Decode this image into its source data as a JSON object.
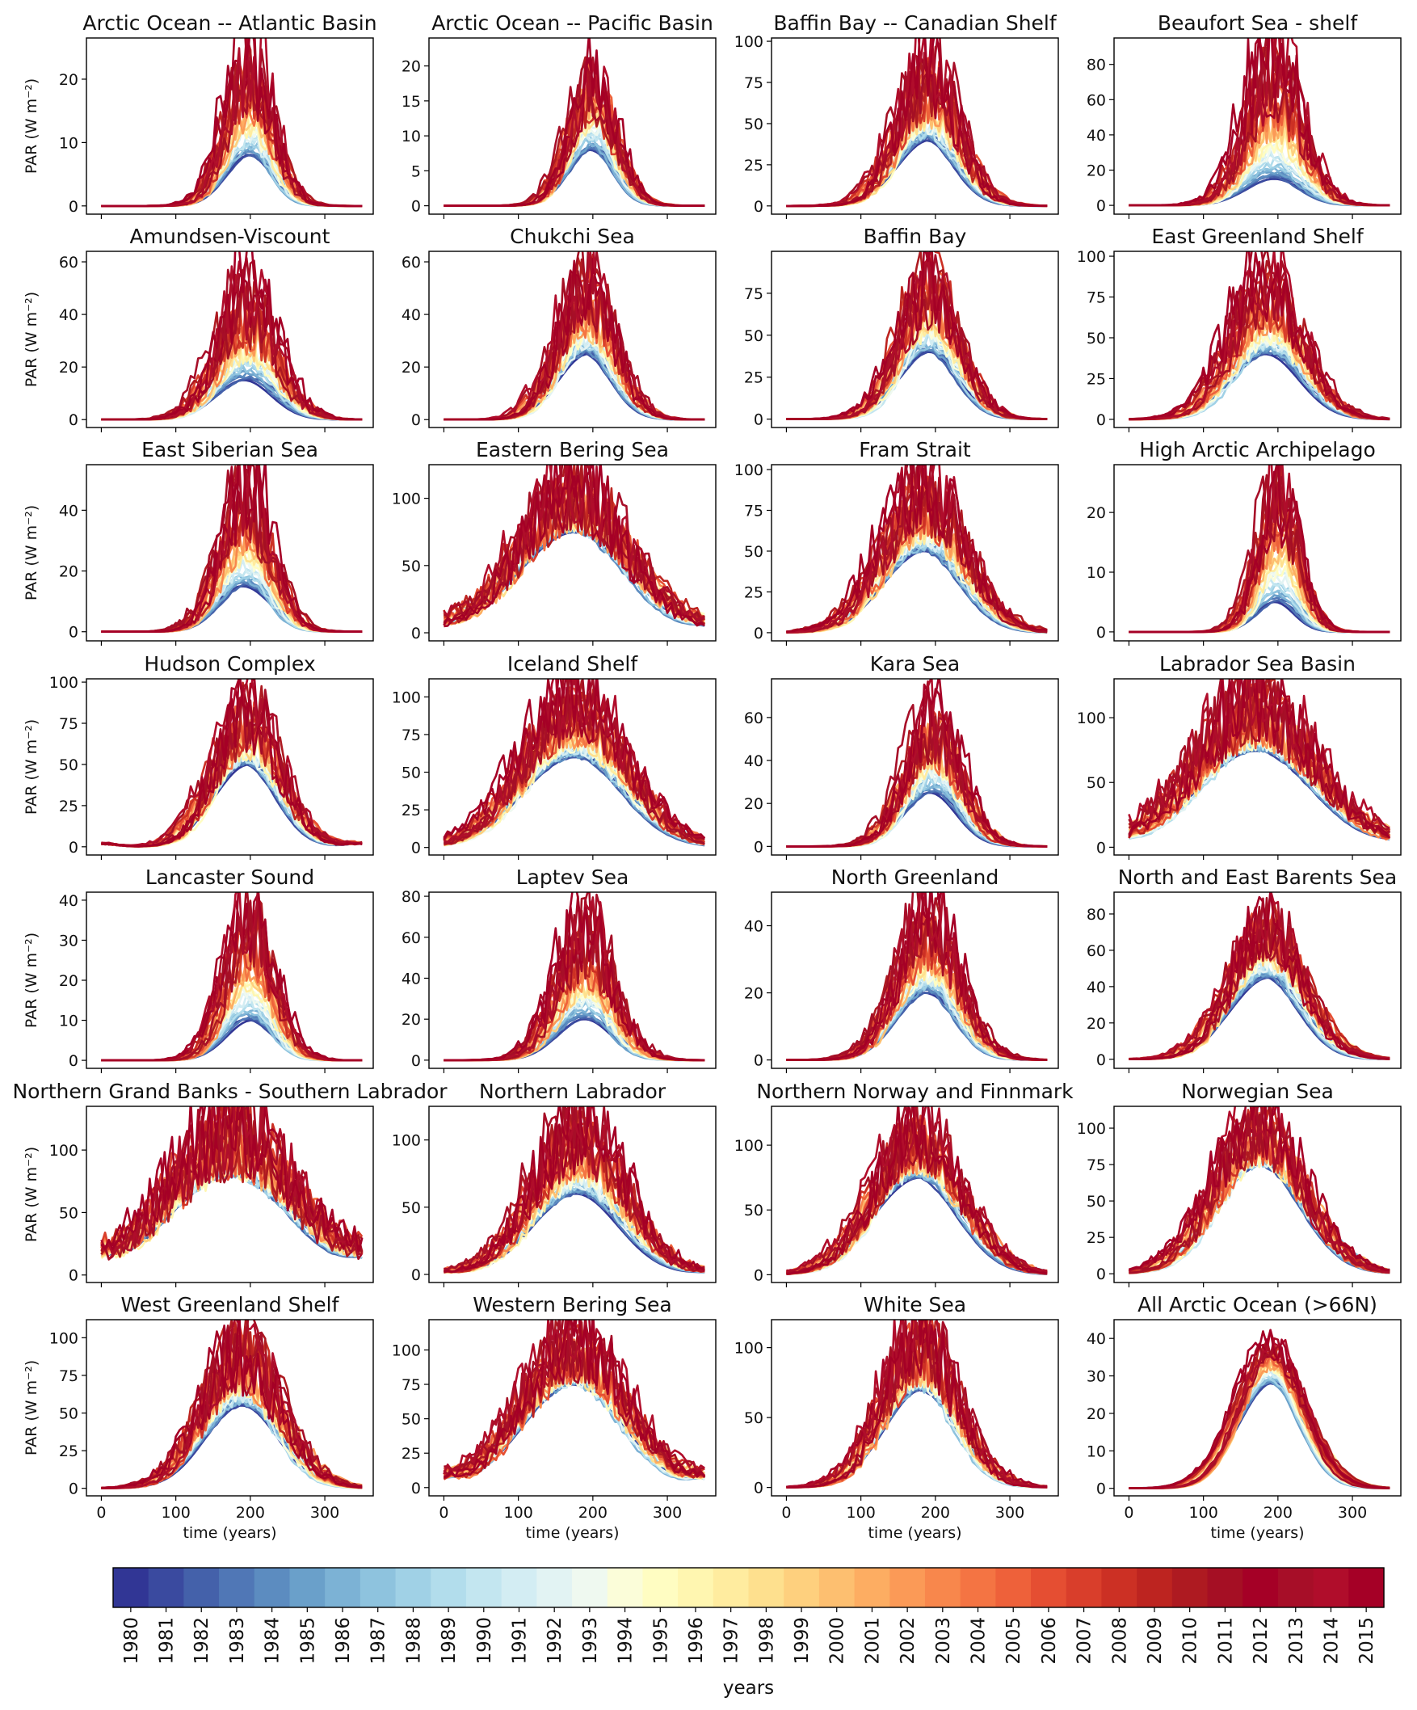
{
  "figure": {
    "ylabel": "PAR (W m⁻²)",
    "xlabel": "time (years)",
    "colorbar": {
      "label": "years",
      "years": [
        "1980",
        "1981",
        "1982",
        "1983",
        "1984",
        "1985",
        "1986",
        "1987",
        "1988",
        "1989",
        "1990",
        "1991",
        "1992",
        "1993",
        "1994",
        "1995",
        "1996",
        "1997",
        "1998",
        "1999",
        "2000",
        "2001",
        "2002",
        "2003",
        "2004",
        "2005",
        "2006",
        "2007",
        "2008",
        "2009",
        "2010",
        "2011",
        "2012",
        "2013",
        "2014",
        "2015"
      ],
      "colors": [
        "#313695",
        "#3a4a9f",
        "#4461aa",
        "#5077b6",
        "#5c8cc0",
        "#6aa0ca",
        "#7cb2d5",
        "#8ec3de",
        "#a0d1e6",
        "#b2ddec",
        "#c3e6f0",
        "#d3edf3",
        "#e2f3f3",
        "#eff9f0",
        "#fbfdd9",
        "#fffdc2",
        "#fff6b0",
        "#ffec9f",
        "#fee08e",
        "#fed07e",
        "#fdbf70",
        "#fdad62",
        "#fb9a57",
        "#f8874c",
        "#f47443",
        "#ee613a",
        "#e54e32",
        "#d93e2b",
        "#cc3024",
        "#bd2420",
        "#ae1a21",
        "#a50f24",
        "#a50026",
        "#a70e28",
        "#b00d2b",
        "#a50026"
      ]
    },
    "xlim": [
      -20,
      365
    ],
    "xticks": [
      0,
      100,
      200,
      300
    ]
  },
  "chart_data": [
    {
      "type": "line",
      "title": "Arctic Ocean -- Atlantic Basin",
      "ylim": [
        -1.3,
        26.5
      ],
      "yticks": [
        0,
        10,
        20
      ],
      "peak": [
        8,
        26
      ],
      "peak_day": 200,
      "sigma": 32,
      "start": 0,
      "noise": 0.4
    },
    {
      "type": "line",
      "title": "Arctic Ocean -- Pacific Basin",
      "ylim": [
        -1.2,
        24
      ],
      "yticks": [
        0,
        5,
        10,
        15,
        20
      ],
      "peak": [
        8,
        22
      ],
      "peak_day": 200,
      "sigma": 32,
      "start": 0,
      "noise": 0.35
    },
    {
      "type": "line",
      "title": "Baffin Bay -- Canadian Shelf",
      "ylim": [
        -5,
        102
      ],
      "yticks": [
        0,
        25,
        50,
        75,
        100
      ],
      "peak": [
        40,
        95
      ],
      "peak_day": 190,
      "sigma": 42,
      "start": 0,
      "noise": 0.4
    },
    {
      "type": "line",
      "title": "Beaufort Sea - shelf",
      "ylim": [
        -5,
        95
      ],
      "yticks": [
        0,
        20,
        40,
        60,
        80
      ],
      "peak": [
        15,
        90
      ],
      "peak_day": 195,
      "sigma": 38,
      "start": 0,
      "noise": 0.45
    },
    {
      "type": "line",
      "title": "Amundsen-Viscount",
      "ylim": [
        -3,
        64
      ],
      "yticks": [
        0,
        20,
        40,
        60
      ],
      "peak": [
        15,
        60
      ],
      "peak_day": 195,
      "sigma": 40,
      "start": 0,
      "noise": 0.45
    },
    {
      "type": "line",
      "title": "Chukchi Sea",
      "ylim": [
        -3,
        64
      ],
      "yticks": [
        0,
        20,
        40,
        60
      ],
      "peak": [
        25,
        60
      ],
      "peak_day": 190,
      "sigma": 38,
      "start": 0,
      "noise": 0.4
    },
    {
      "type": "line",
      "title": "Baffin Bay",
      "ylim": [
        -5,
        100
      ],
      "yticks": [
        0,
        25,
        50,
        75
      ],
      "peak": [
        40,
        95
      ],
      "peak_day": 190,
      "sigma": 40,
      "start": 0,
      "noise": 0.35
    },
    {
      "type": "line",
      "title": "East Greenland Shelf",
      "ylim": [
        -5,
        103
      ],
      "yticks": [
        0,
        25,
        50,
        75,
        100
      ],
      "peak": [
        40,
        98
      ],
      "peak_day": 185,
      "sigma": 48,
      "start": 0,
      "noise": 0.35
    },
    {
      "type": "line",
      "title": "East Siberian Sea",
      "ylim": [
        -3,
        55
      ],
      "yticks": [
        0,
        20,
        40
      ],
      "peak": [
        15,
        52
      ],
      "peak_day": 195,
      "sigma": 35,
      "start": 0,
      "noise": 0.4
    },
    {
      "type": "line",
      "title": "Eastern Bering Sea",
      "ylim": [
        -6,
        125
      ],
      "yticks": [
        0,
        50,
        100
      ],
      "peak": [
        75,
        120
      ],
      "peak_day": 175,
      "sigma": 75,
      "start": 3,
      "noise": 0.35
    },
    {
      "type": "line",
      "title": "Fram Strait",
      "ylim": [
        -5,
        103
      ],
      "yticks": [
        0,
        25,
        50,
        75,
        100
      ],
      "peak": [
        50,
        98
      ],
      "peak_day": 185,
      "sigma": 55,
      "start": 0,
      "noise": 0.35
    },
    {
      "type": "line",
      "title": "High Arctic Archipelago",
      "ylim": [
        -1.5,
        28
      ],
      "yticks": [
        0,
        10,
        20
      ],
      "peak": [
        5,
        27
      ],
      "peak_day": 200,
      "sigma": 28,
      "start": 0,
      "noise": 0.4
    },
    {
      "type": "line",
      "title": "Hudson Complex",
      "ylim": [
        -5,
        102
      ],
      "yticks": [
        0,
        25,
        50,
        75,
        100
      ],
      "peak": [
        50,
        95
      ],
      "peak_day": 195,
      "sigma": 45,
      "start": 2,
      "noise": 0.35
    },
    {
      "type": "line",
      "title": "Iceland Shelf",
      "ylim": [
        -5,
        112
      ],
      "yticks": [
        0,
        25,
        50,
        75,
        100
      ],
      "peak": [
        60,
        105
      ],
      "peak_day": 175,
      "sigma": 70,
      "start": 0,
      "noise": 0.3
    },
    {
      "type": "line",
      "title": "Kara Sea",
      "ylim": [
        -4,
        78
      ],
      "yticks": [
        0,
        20,
        40,
        60
      ],
      "peak": [
        25,
        72
      ],
      "peak_day": 195,
      "sigma": 38,
      "start": 0,
      "noise": 0.4
    },
    {
      "type": "line",
      "title": "Labrador Sea Basin",
      "ylim": [
        -6,
        130
      ],
      "yticks": [
        0,
        50,
        100
      ],
      "peak": [
        75,
        125
      ],
      "peak_day": 170,
      "sigma": 80,
      "start": 2,
      "noise": 0.35
    },
    {
      "type": "line",
      "title": "Lancaster Sound",
      "ylim": [
        -2,
        42
      ],
      "yticks": [
        0,
        10,
        20,
        30,
        40
      ],
      "peak": [
        10,
        40
      ],
      "peak_day": 200,
      "sigma": 33,
      "start": 0,
      "noise": 0.35
    },
    {
      "type": "line",
      "title": "Laptev Sea",
      "ylim": [
        -4,
        82
      ],
      "yticks": [
        0,
        20,
        40,
        60,
        80
      ],
      "peak": [
        20,
        78
      ],
      "peak_day": 190,
      "sigma": 38,
      "start": 0,
      "noise": 0.4
    },
    {
      "type": "line",
      "title": "North Greenland",
      "ylim": [
        -2.5,
        50
      ],
      "yticks": [
        0,
        20,
        40
      ],
      "peak": [
        20,
        47
      ],
      "peak_day": 190,
      "sigma": 42,
      "start": 0,
      "noise": 0.35
    },
    {
      "type": "line",
      "title": "North and East Barents Sea",
      "ylim": [
        -5,
        92
      ],
      "yticks": [
        0,
        20,
        40,
        60,
        80
      ],
      "peak": [
        45,
        85
      ],
      "peak_day": 185,
      "sigma": 50,
      "start": 0,
      "noise": 0.3
    },
    {
      "type": "line",
      "title": "Northern Grand Banks - Southern Labrador",
      "ylim": [
        -6,
        135
      ],
      "yticks": [
        0,
        50,
        100
      ],
      "peak": [
        80,
        130
      ],
      "peak_day": 175,
      "sigma": 85,
      "start": 8,
      "noise": 0.4
    },
    {
      "type": "line",
      "title": "Northern Labrador",
      "ylim": [
        -6,
        125
      ],
      "yticks": [
        0,
        50,
        100
      ],
      "peak": [
        60,
        120
      ],
      "peak_day": 180,
      "sigma": 62,
      "start": 1,
      "noise": 0.35
    },
    {
      "type": "line",
      "title": "Northern Norway and Finnmark",
      "ylim": [
        -6,
        130
      ],
      "yticks": [
        0,
        50,
        100
      ],
      "peak": [
        75,
        125
      ],
      "peak_day": 175,
      "sigma": 60,
      "start": 0,
      "noise": 0.3
    },
    {
      "type": "line",
      "title": "Norwegian Sea",
      "ylim": [
        -6,
        115
      ],
      "yticks": [
        0,
        25,
        50,
        75,
        100
      ],
      "peak": [
        75,
        110
      ],
      "peak_day": 175,
      "sigma": 60,
      "start": 0,
      "noise": 0.3
    },
    {
      "type": "line",
      "title": "West Greenland Shelf",
      "ylim": [
        -5,
        112
      ],
      "yticks": [
        0,
        25,
        50,
        75,
        100
      ],
      "peak": [
        55,
        105
      ],
      "peak_day": 190,
      "sigma": 52,
      "start": 0,
      "noise": 0.35
    },
    {
      "type": "line",
      "title": "Western Bering Sea",
      "ylim": [
        -6,
        122
      ],
      "yticks": [
        0,
        25,
        50,
        75,
        100
      ],
      "peak": [
        75,
        115
      ],
      "peak_day": 175,
      "sigma": 70,
      "start": 5,
      "noise": 0.3
    },
    {
      "type": "line",
      "title": "White Sea",
      "ylim": [
        -6,
        120
      ],
      "yticks": [
        0,
        50,
        100
      ],
      "peak": [
        70,
        115
      ],
      "peak_day": 180,
      "sigma": 50,
      "start": 0,
      "noise": 0.35
    },
    {
      "type": "line",
      "title": "All Arctic Ocean (>66N)",
      "ylim": [
        -2,
        45
      ],
      "yticks": [
        0,
        10,
        20,
        30,
        40
      ],
      "peak": [
        28,
        42
      ],
      "peak_day": 190,
      "sigma": 45,
      "start": 0,
      "noise": 0.1
    }
  ]
}
